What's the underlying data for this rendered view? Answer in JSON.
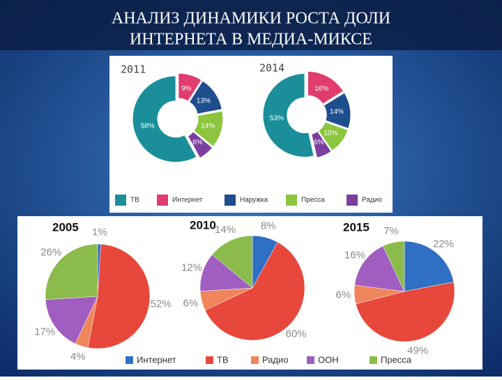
{
  "title_lines": [
    "АНАЛИЗ ДИНАМИКИ РОСТА ДОЛИ",
    "ИНТЕРНЕТА В МЕДИА-МИКСЕ"
  ],
  "chart_data": [
    {
      "type": "donut",
      "categories": [
        "ТВ",
        "Интернет",
        "Наружка",
        "Пресса",
        "Радио"
      ],
      "colors": [
        "#1a8f9a",
        "#e03c6e",
        "#1f4e8c",
        "#8cc63f",
        "#7b3f9e"
      ],
      "series": [
        {
          "name": "2011",
          "values": [
            58,
            9,
            13,
            14,
            6
          ],
          "value_labels": [
            "58%",
            "9%",
            "13%",
            "14%",
            "6%"
          ]
        },
        {
          "name": "2014",
          "values": [
            53,
            16,
            14,
            10,
            6
          ],
          "value_labels": [
            "53%",
            "16%",
            "14%",
            "10%",
            "6%"
          ]
        }
      ]
    },
    {
      "type": "pie",
      "categories": [
        "Интернет",
        "ТВ",
        "Радио",
        "ООН",
        "Пресса"
      ],
      "colors": [
        "#2f6fc4",
        "#e8473b",
        "#f0845a",
        "#a05ec0",
        "#8bbb4a"
      ],
      "series": [
        {
          "name": "2005",
          "values": [
            1,
            52,
            4,
            17,
            26
          ],
          "value_labels": [
            "1%",
            "52%",
            "4%",
            "17%",
            "26%"
          ]
        },
        {
          "name": "2010",
          "values": [
            8,
            60,
            6,
            12,
            14
          ],
          "value_labels": [
            "8%",
            "60%",
            "6%",
            "12%",
            "14%"
          ]
        },
        {
          "name": "2015",
          "values": [
            22,
            49,
            6,
            16,
            7
          ],
          "value_labels": [
            "22%",
            "49%",
            "6%",
            "16%",
            "7%"
          ]
        }
      ]
    }
  ]
}
